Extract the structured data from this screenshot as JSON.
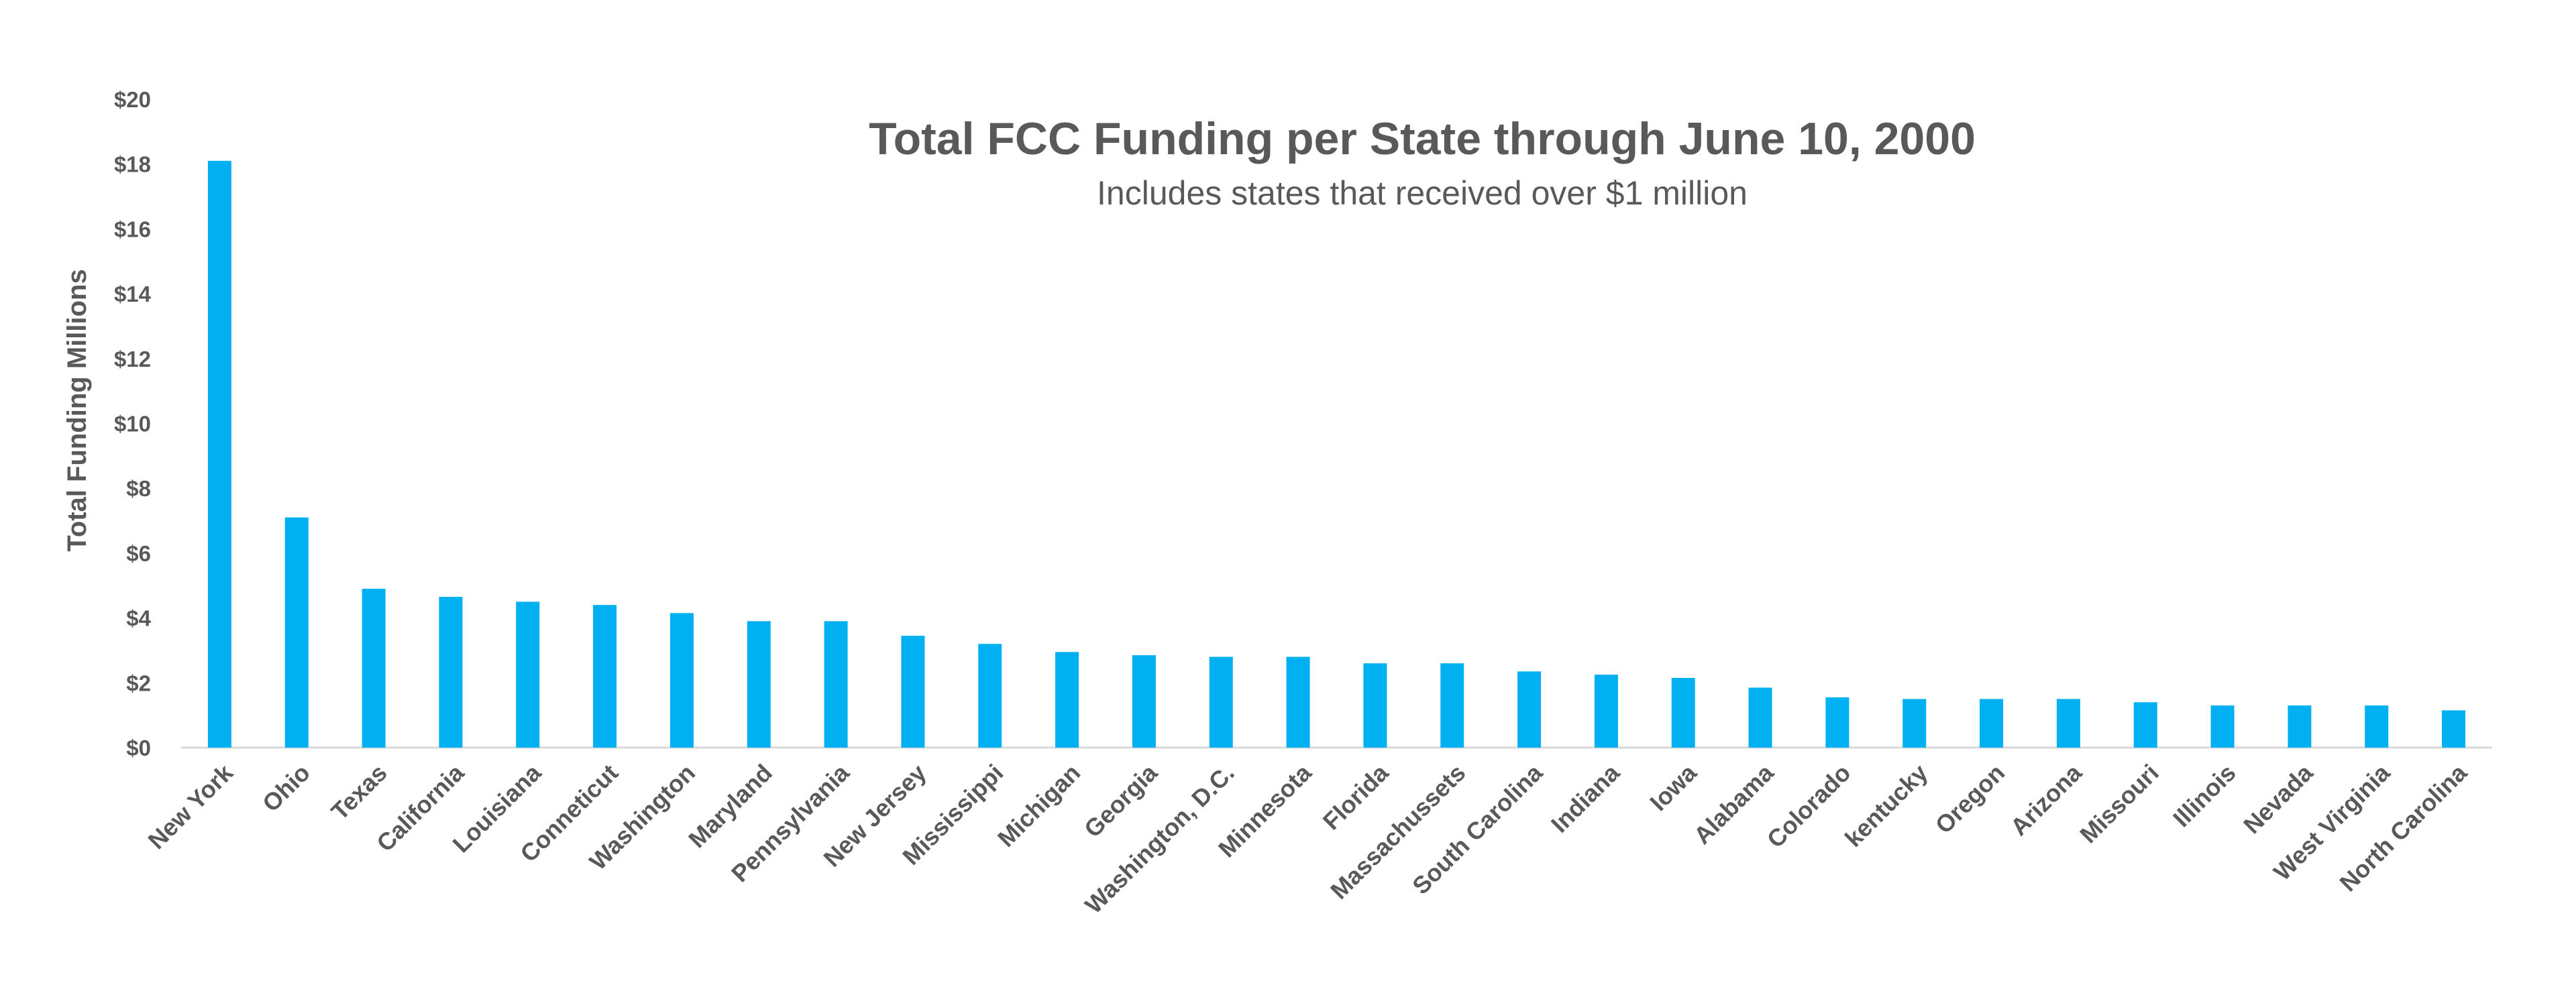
{
  "chart_data": {
    "type": "bar",
    "title": "Total FCC Funding per State through June 10, 2000",
    "subtitle": "Includes states that received over $1 million",
    "xlabel": "",
    "ylabel": "Total Funding Millions",
    "ylim": [
      0,
      20
    ],
    "y_ticks": [
      "$0",
      "$2",
      "$4",
      "$6",
      "$8",
      "$10",
      "$12",
      "$14",
      "$16",
      "$18",
      "$20"
    ],
    "grid": false,
    "legend": "none",
    "bar_color": "#00B0F0",
    "categories": [
      "New York",
      "Ohio",
      "Texas",
      "California",
      "Louisiana",
      "Conneticut",
      "Washington",
      "Maryland",
      "Pennsylvania",
      "New Jersey",
      "Mississippi",
      "Michigan",
      "Georgia",
      "Washington, D.C.",
      "Minnesota",
      "Florida",
      "Massachussets",
      "South Carolina",
      "Indiana",
      "Iowa",
      "Alabama",
      "Colorado",
      "kentucky",
      "Oregon",
      "Arizona",
      "Missouri",
      "Illinois",
      "Nevada",
      "West Virginia",
      "North Carolina"
    ],
    "values": [
      18.1,
      7.1,
      4.9,
      4.65,
      4.5,
      4.4,
      4.15,
      3.9,
      3.9,
      3.45,
      3.2,
      2.95,
      2.85,
      2.8,
      2.8,
      2.6,
      2.6,
      2.35,
      2.25,
      2.15,
      1.85,
      1.55,
      1.5,
      1.5,
      1.5,
      1.4,
      1.3,
      1.3,
      1.3,
      1.15
    ]
  }
}
